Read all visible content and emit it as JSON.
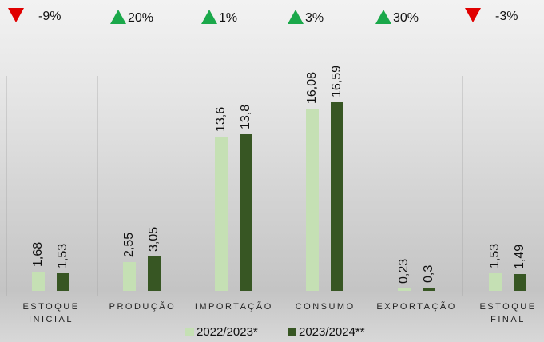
{
  "chart_data": {
    "type": "bar",
    "categories": [
      "ESTOQUE INICIAL",
      "PRODUÇÃO",
      "IMPORTAÇÃO",
      "CONSUMO",
      "EXPORTAÇÃO",
      "ESTOQUE FINAL"
    ],
    "changes": [
      {
        "value": -9,
        "label": "-9%"
      },
      {
        "value": 20,
        "label": "20%"
      },
      {
        "value": 1,
        "label": "1%"
      },
      {
        "value": 3,
        "label": "3%"
      },
      {
        "value": 30,
        "label": "30%"
      },
      {
        "value": -3,
        "label": "-3%"
      }
    ],
    "series": [
      {
        "name": "2022/2023*",
        "color": "#c5e0b4",
        "values": [
          1.68,
          2.55,
          13.6,
          16.08,
          0.23,
          1.53
        ],
        "value_labels": [
          "1,68",
          "2,55",
          "13,6",
          "16,08",
          "0,23",
          "1,53"
        ]
      },
      {
        "name": "2023/2024**",
        "color": "#375623",
        "values": [
          1.53,
          3.05,
          13.8,
          16.59,
          0.3,
          1.49
        ],
        "value_labels": [
          "1,53",
          "3,05",
          "13,8",
          "16,59",
          "0,3",
          "1,49"
        ]
      }
    ]
  }
}
